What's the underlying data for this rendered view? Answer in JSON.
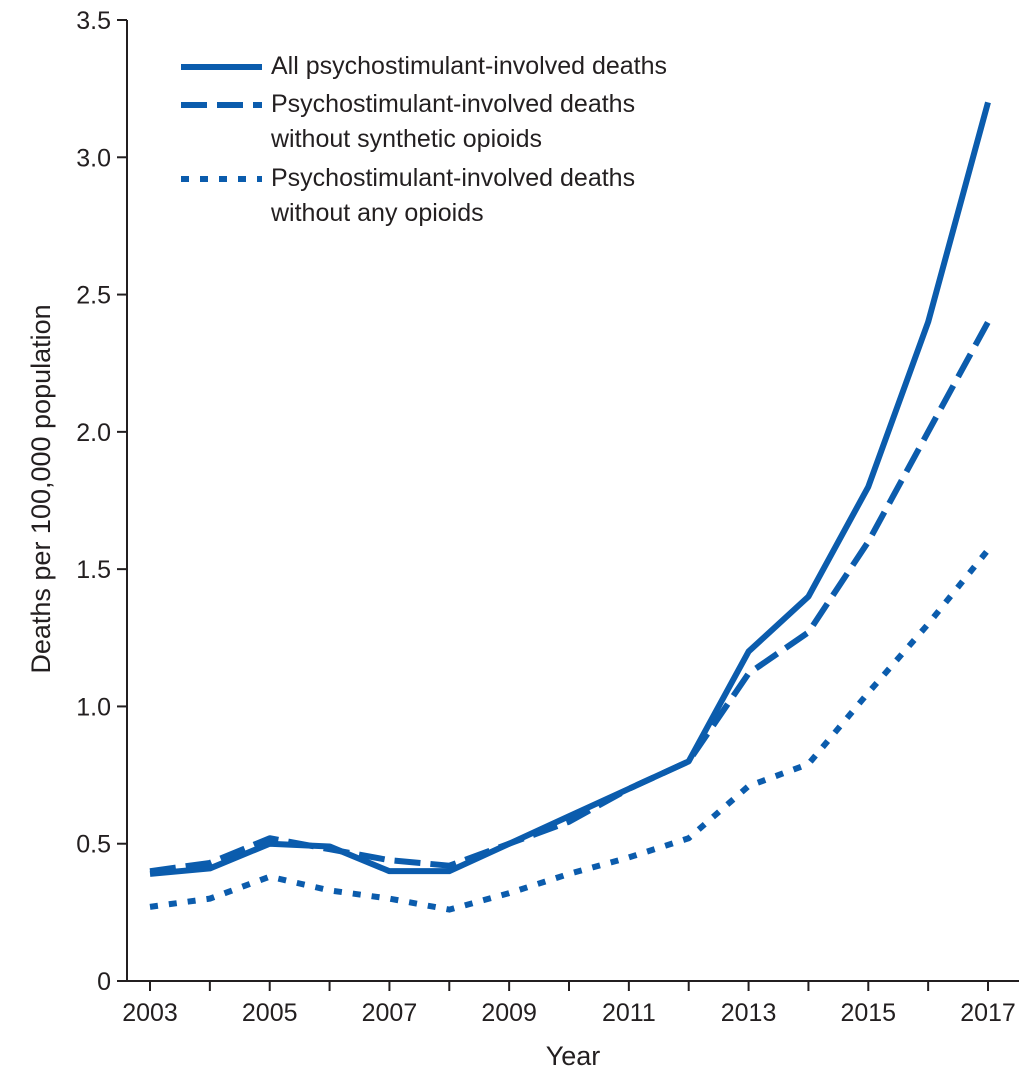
{
  "chart_data": {
    "type": "line",
    "xlabel": "Year",
    "ylabel": "Deaths per 100,000 population",
    "xlim": [
      2003,
      2017
    ],
    "ylim": [
      0,
      3.5
    ],
    "grid": false,
    "legend_position": "top-left",
    "x": [
      2003,
      2004,
      2005,
      2006,
      2007,
      2008,
      2009,
      2010,
      2011,
      2012,
      2013,
      2014,
      2015,
      2016,
      2017
    ],
    "x_ticks": [
      2003,
      2005,
      2007,
      2009,
      2011,
      2013,
      2015,
      2017
    ],
    "x_tick_labels": [
      "2003",
      "2005",
      "2007",
      "2009",
      "2011",
      "2013",
      "2015",
      "2017"
    ],
    "y_ticks": [
      0,
      0.5,
      1.0,
      1.5,
      2.0,
      2.5,
      3.0,
      3.5
    ],
    "y_tick_labels": [
      "0",
      "0.5",
      "1.0",
      "1.5",
      "2.0",
      "2.5",
      "3.0",
      "3.5"
    ],
    "series": [
      {
        "name": "All psychostimulant-involved deaths",
        "legend_lines": [
          "All psychostimulant-involved deaths"
        ],
        "style": "solid",
        "color": "#0b5cad",
        "values": [
          0.39,
          0.41,
          0.5,
          0.49,
          0.4,
          0.4,
          0.5,
          0.6,
          0.7,
          0.8,
          1.2,
          1.4,
          1.8,
          2.4,
          3.2
        ]
      },
      {
        "name": "Psychostimulant-involved deaths without synthetic opioids",
        "legend_lines": [
          "Psychostimulant-involved deaths",
          "without synthetic opioids"
        ],
        "style": "dashed",
        "color": "#0b5cad",
        "values": [
          0.4,
          0.43,
          0.52,
          0.48,
          0.44,
          0.42,
          0.5,
          0.58,
          0.7,
          0.8,
          1.12,
          1.27,
          1.6,
          2.0,
          2.4
        ]
      },
      {
        "name": "Psychostimulant-involved deaths without any opioids",
        "legend_lines": [
          "Psychostimulant-involved deaths",
          "without any opioids"
        ],
        "style": "dotted",
        "color": "#0b5cad",
        "values": [
          0.27,
          0.3,
          0.38,
          0.33,
          0.3,
          0.26,
          0.32,
          0.39,
          0.45,
          0.52,
          0.71,
          0.79,
          1.05,
          1.3,
          1.57
        ]
      }
    ]
  }
}
